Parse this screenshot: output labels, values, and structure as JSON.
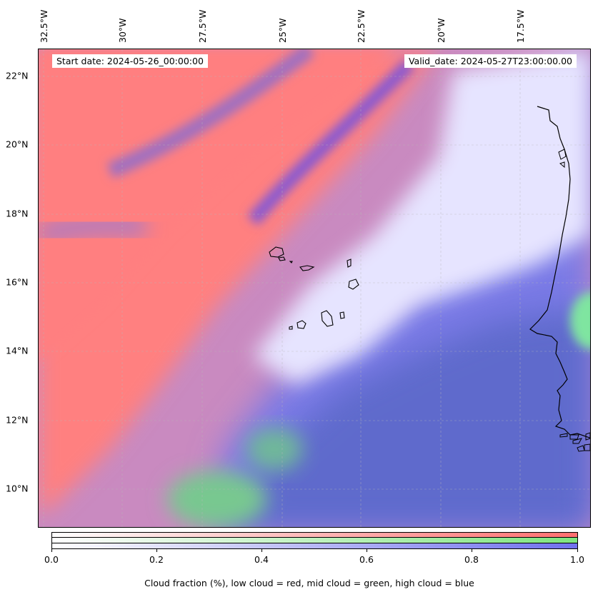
{
  "map": {
    "start_label": "Start date: 2024-05-26_00:00:00",
    "valid_label": "Valid_date: 2024-05-27T23:00:00.00",
    "lon_labels": [
      "32.5°W",
      "30°W",
      "27.5°W",
      "25°W",
      "22.5°W",
      "20°W",
      "17.5°W"
    ],
    "lat_labels": [
      "22°N",
      "20°N",
      "18°N",
      "16°N",
      "14°N",
      "12°N",
      "10°N"
    ],
    "lon_range": [
      -33.0,
      -15.5
    ],
    "lat_range": [
      8.9,
      22.8
    ],
    "gridlines": true,
    "layers": {
      "low_cloud_color": "#ff7f7f",
      "mid_cloud_color": "#7fe07f",
      "high_cloud_color": "#7f7fff"
    },
    "features": [
      "Cape Verde islands",
      "West African coastline"
    ]
  },
  "colorbar": {
    "ticks": [
      "0.0",
      "0.2",
      "0.4",
      "0.6",
      "0.8",
      "1.0"
    ],
    "label": "Cloud fraction (%), low cloud = red, mid cloud = green, high cloud = blue",
    "colors": [
      "#ff6f6f",
      "#7fe57f",
      "#7070ee"
    ]
  }
}
